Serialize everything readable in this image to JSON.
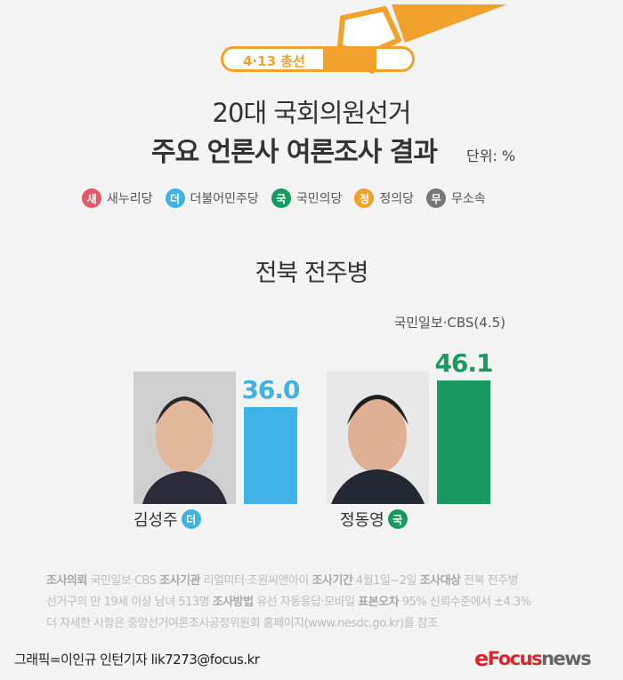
{
  "header": {
    "tag": "4·13 총선",
    "title_line1": "20대 국회의원선거",
    "title_line2": "주요 언론사 여론조사 결과",
    "unit": "단위: %"
  },
  "legend": [
    {
      "badge": "새",
      "label": "새누리당",
      "color": "#e05a6a"
    },
    {
      "badge": "더",
      "label": "더불어민주당",
      "color": "#3fb3e6"
    },
    {
      "badge": "국",
      "label": "국민의당",
      "color": "#1a9a63"
    },
    {
      "badge": "정",
      "label": "정의당",
      "color": "#f0a22c"
    },
    {
      "badge": "무",
      "label": "무소속",
      "color": "#777777"
    }
  ],
  "district": "전북 전주병",
  "source": "국민일보·CBS(4.5)",
  "chart_data": {
    "type": "bar",
    "categories": [
      "김성주",
      "정동영"
    ],
    "values": [
      36.0,
      46.1
    ],
    "value_labels": [
      "36.0",
      "46.1"
    ],
    "parties": [
      "더",
      "국"
    ],
    "colors": [
      "#3fb3e6",
      "#1a9a63"
    ],
    "ylim": [
      0,
      50
    ]
  },
  "notes": {
    "l1": [
      [
        "조사의뢰",
        " 국민일보·CBS "
      ],
      [
        "조사기관",
        " 리얼미터·조원씨앤아이 "
      ],
      [
        "조사기간",
        " 4월1일~2일 "
      ],
      [
        "조사대상",
        " 전북 전주병"
      ]
    ],
    "l2a": "선거구의 만 19세 이상 남녀 513명 ",
    "l2b": "조사방법",
    "l2c": " 유선 자동응답·모바일 ",
    "l2d": "표본오차",
    "l2e": " 95% 신뢰수준에서 ±4.3%",
    "l3": "더 자세한 사항은 중앙선거여론조사공정위원회 홈페이지(www.nesdc.go.kr)를 참조"
  },
  "footer": {
    "credit": "그래픽=이인규 인턴기자 lik7273@focus.kr",
    "logo": "Focusnews"
  }
}
